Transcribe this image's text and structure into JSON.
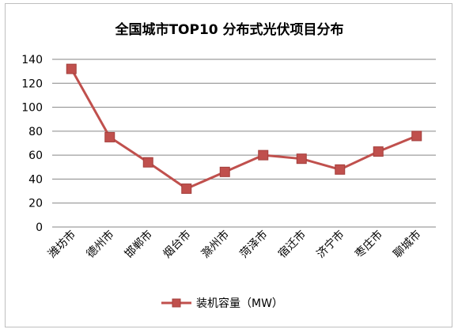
{
  "chart_data": {
    "type": "line",
    "title": "全国城市TOP10 分布式光伏项目分布",
    "categories": [
      "潍坊市",
      "德州市",
      "邯郸市",
      "烟台市",
      "滁州市",
      "菏泽市",
      "宿迁市",
      "济宁市",
      "枣庄市",
      "聊城市"
    ],
    "series": [
      {
        "name": "装机容量（MW）",
        "values": [
          132,
          75,
          54,
          32,
          46,
          60,
          57,
          48,
          63,
          76
        ],
        "color": "#c0504d"
      }
    ],
    "ylim": [
      0,
      140
    ],
    "yticks": [
      0,
      20,
      40,
      60,
      80,
      100,
      120,
      140
    ],
    "xlabel": "",
    "ylabel": "",
    "grid": true,
    "legend_position": "bottom",
    "marker": "square"
  }
}
